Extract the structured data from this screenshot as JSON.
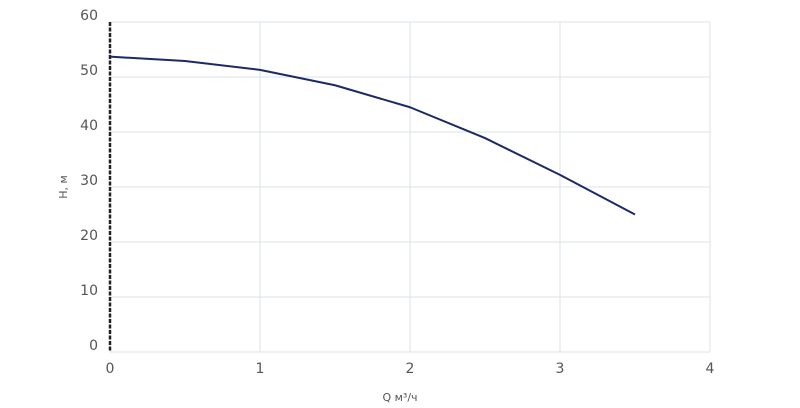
{
  "chart_data": {
    "type": "line",
    "x_label": "Q м³/ч",
    "y_label": "H, м",
    "x": [
      0,
      0.5,
      1,
      1.5,
      2,
      2.5,
      3,
      3.5
    ],
    "series": [
      {
        "name": "H",
        "color": "#1b2a66",
        "values": [
          53.7,
          52.9,
          51.3,
          48.5,
          44.5,
          38.9,
          32.2,
          25
        ]
      }
    ],
    "xlim": [
      0,
      4
    ],
    "xticks": [
      0,
      1,
      2,
      3,
      4
    ],
    "ylim": [
      0,
      60
    ],
    "yticks": [
      0,
      10,
      20,
      30,
      40,
      50,
      60
    ],
    "grid": true
  }
}
